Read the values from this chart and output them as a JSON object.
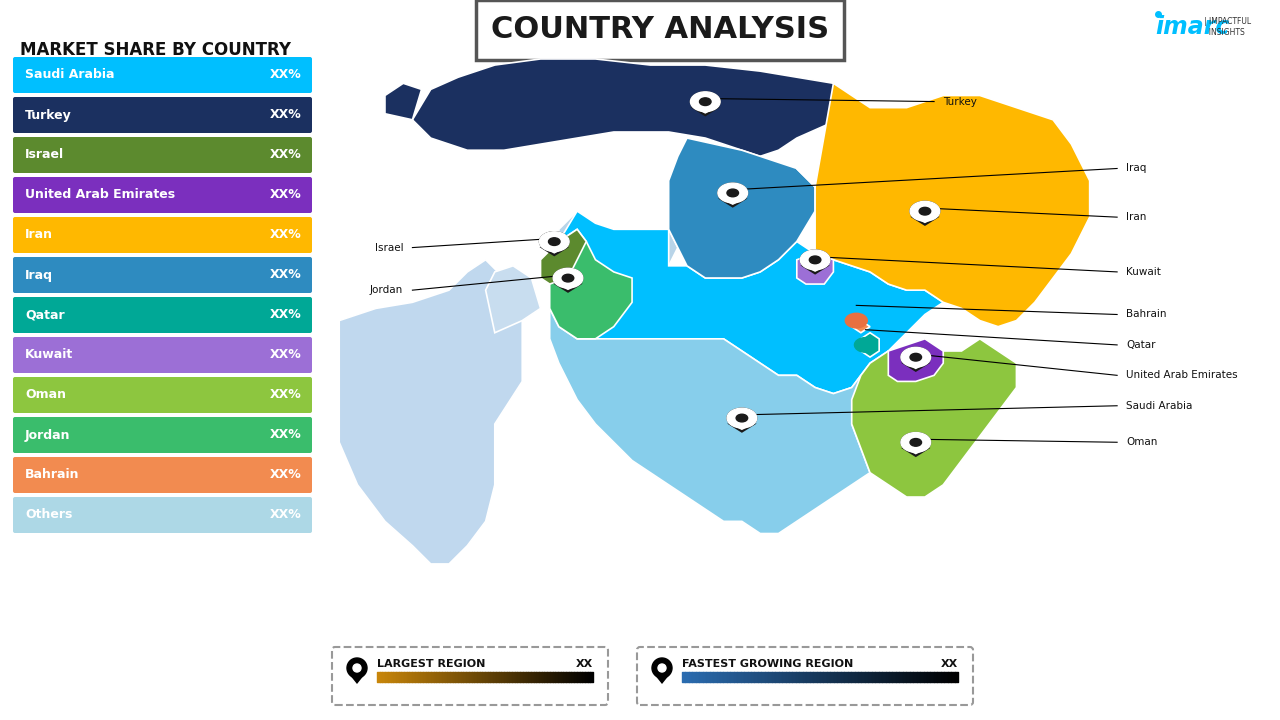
{
  "title": "COUNTRY ANALYSIS",
  "sidebar_title": "MARKET SHARE BY COUNTRY",
  "countries": [
    {
      "name": "Saudi Arabia",
      "value": "XX%",
      "color": "#00BFFF"
    },
    {
      "name": "Turkey",
      "value": "XX%",
      "color": "#1B3060"
    },
    {
      "name": "Israel",
      "value": "XX%",
      "color": "#5C8A2E"
    },
    {
      "name": "United Arab Emirates",
      "value": "XX%",
      "color": "#7B2FBE"
    },
    {
      "name": "Iran",
      "value": "XX%",
      "color": "#FFB800"
    },
    {
      "name": "Iraq",
      "value": "XX%",
      "color": "#2E8BC0"
    },
    {
      "name": "Qatar",
      "value": "XX%",
      "color": "#00A896"
    },
    {
      "name": "Kuwait",
      "value": "XX%",
      "color": "#9C6FD6"
    },
    {
      "name": "Oman",
      "value": "XX%",
      "color": "#8DC63F"
    },
    {
      "name": "Jordan",
      "value": "XX%",
      "color": "#3ABD6C"
    },
    {
      "name": "Bahrain",
      "value": "XX%",
      "color": "#F28B50"
    },
    {
      "name": "Others",
      "value": "XX%",
      "color": "#ADD8E6"
    }
  ],
  "background_color": "#FFFFFF",
  "largest_region_label": "LARGEST REGION",
  "largest_region_value": "XX",
  "fastest_growing_label": "FASTEST GROWING REGION",
  "fastest_growing_value": "XX",
  "imarc_color": "#00BFFF"
}
